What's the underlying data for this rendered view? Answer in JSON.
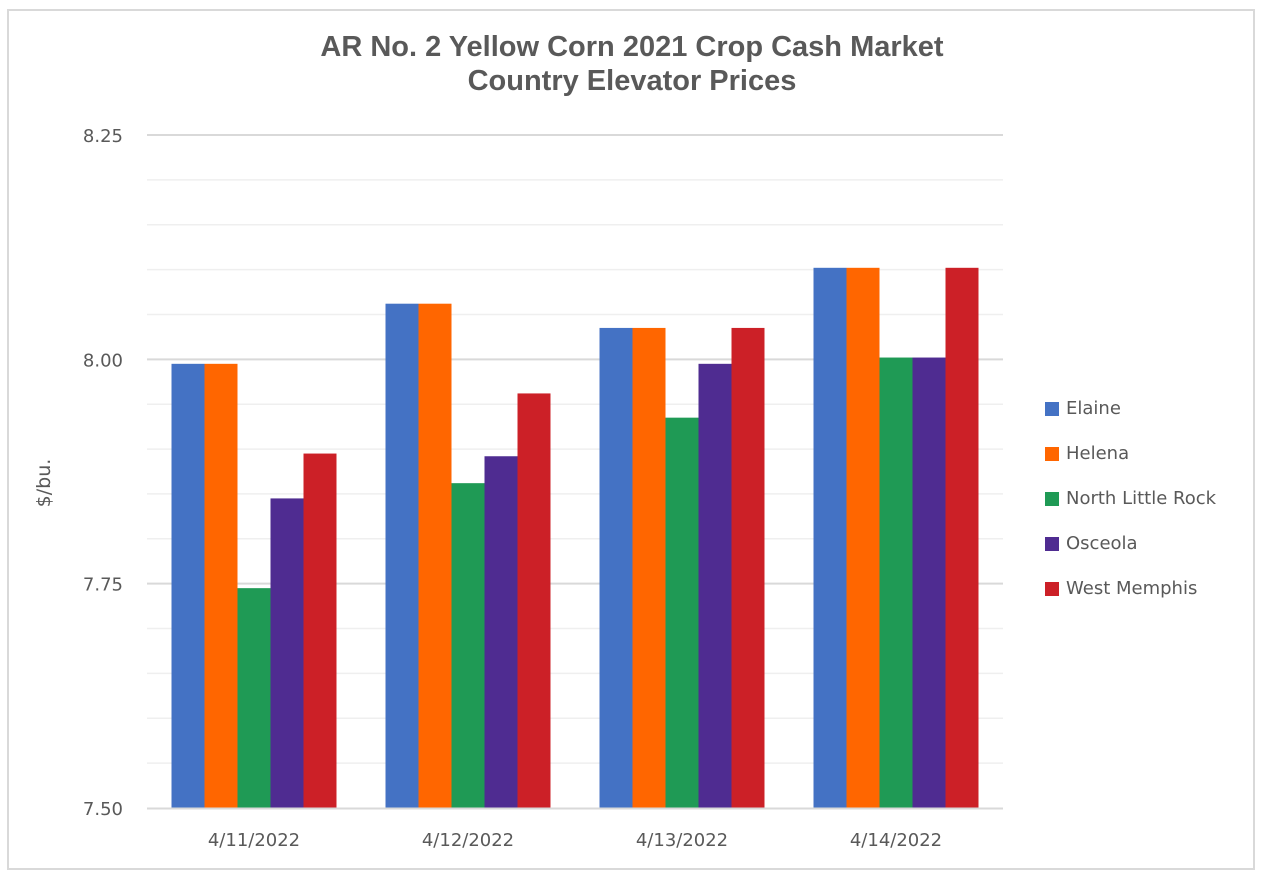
{
  "chart_data": {
    "type": "bar",
    "title": "AR No. 2 Yellow Corn 2021 Crop Cash Market Country Elevator Prices",
    "title_lines": [
      "AR No. 2 Yellow Corn 2021 Crop Cash Market",
      "Country Elevator Prices"
    ],
    "xlabel": "",
    "ylabel": "$/bu.",
    "ylim": [
      7.5,
      8.25
    ],
    "yticks": [
      "7.50",
      "7.75",
      "8.00",
      "8.25"
    ],
    "minor_gridline_step": 0.05,
    "grid": true,
    "legend_position": "right",
    "categories": [
      "4/11/2022",
      "4/12/2022",
      "4/13/2022",
      "4/14/2022"
    ],
    "series": [
      {
        "name": "Elaine",
        "color": "#4472c4",
        "values": [
          7.995,
          8.062,
          8.035,
          8.102
        ]
      },
      {
        "name": "Helena",
        "color": "#ff6600",
        "values": [
          7.995,
          8.062,
          8.035,
          8.102
        ]
      },
      {
        "name": "North Little Rock",
        "color": "#1f9a55",
        "values": [
          7.745,
          7.862,
          7.935,
          8.002
        ]
      },
      {
        "name": "Osceola",
        "color": "#4f2c91",
        "values": [
          7.845,
          7.892,
          7.995,
          8.002
        ]
      },
      {
        "name": "West Memphis",
        "color": "#cc2027",
        "values": [
          7.895,
          7.962,
          8.035,
          8.102
        ]
      }
    ]
  }
}
